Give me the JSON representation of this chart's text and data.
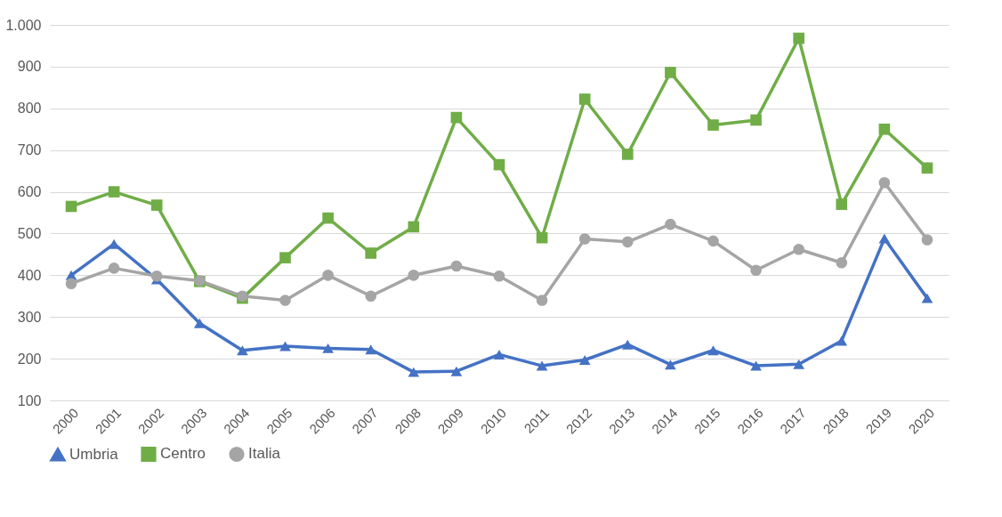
{
  "chart_data": {
    "type": "line",
    "categories": [
      "2000",
      "2001",
      "2002",
      "2003",
      "2004",
      "2005",
      "2006",
      "2007",
      "2008",
      "2009",
      "2010",
      "2011",
      "2012",
      "2013",
      "2014",
      "2015",
      "2016",
      "2017",
      "2018",
      "2019",
      "2020"
    ],
    "series": [
      {
        "name": "Umbria",
        "color": "#4472c4",
        "marker": "triangle",
        "values": [
          400,
          475,
          390,
          285,
          220,
          230,
          225,
          222,
          168,
          170,
          210,
          183,
          197,
          234,
          186,
          220,
          183,
          187,
          243,
          488,
          345
        ]
      },
      {
        "name": "Centro",
        "color": "#70ad47",
        "marker": "square",
        "values": [
          565,
          600,
          568,
          385,
          345,
          442,
          537,
          453,
          516,
          778,
          665,
          490,
          822,
          690,
          886,
          760,
          772,
          968,
          570,
          750,
          657
        ]
      },
      {
        "name": "Italia",
        "color": "#a5a5a5",
        "marker": "circle",
        "values": [
          380,
          417,
          398,
          387,
          350,
          340,
          400,
          350,
          400,
          422,
          398,
          340,
          487,
          480,
          522,
          482,
          412,
          462,
          430,
          622,
          485
        ]
      }
    ],
    "ylim": [
      100,
      1000
    ],
    "yticks": [
      100,
      200,
      300,
      400,
      500,
      600,
      700,
      800,
      900,
      {
        "value": 1000,
        "label": "1.000"
      }
    ],
    "grid": "y",
    "legend": "bottom",
    "line_style": "solid"
  }
}
